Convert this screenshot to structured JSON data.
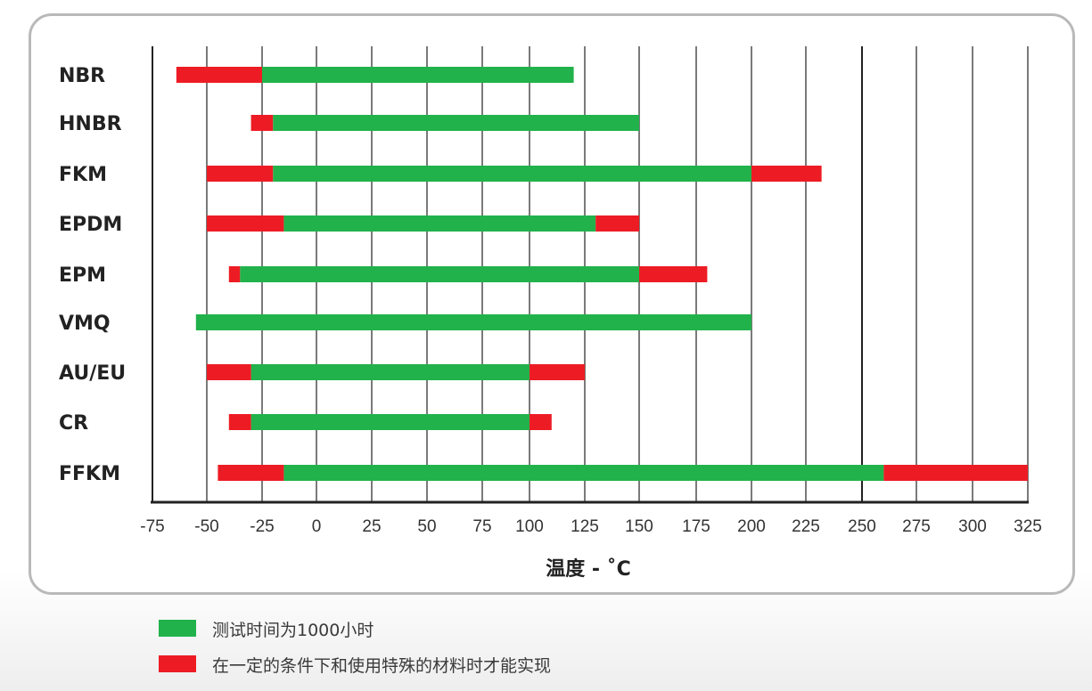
{
  "chart_data": {
    "type": "bar",
    "orientation": "horizontal-range",
    "xlabel": "温度 - ˚C",
    "xlim": [
      -75,
      325
    ],
    "xticks": [
      "-75",
      "-50",
      "-25",
      "0",
      "25",
      "50",
      "75",
      "100",
      "125",
      "150",
      "175",
      "200",
      "225",
      "250",
      "275",
      "300",
      "325"
    ],
    "grid": "vertical",
    "legend_position": "bottom-left",
    "colors": {
      "standard": "#21b24b",
      "special": "#ed1c24"
    },
    "legend": [
      {
        "key": "standard",
        "label": "测试时间为1000小时"
      },
      {
        "key": "special",
        "label": "在一定的条件下和使用特殊的材料时才能实现"
      }
    ],
    "categories": [
      "NBR",
      "HNBR",
      "FKM",
      "EPDM",
      "EPM",
      "VMQ",
      "AU/EU",
      "CR",
      "FFKM"
    ],
    "series": [
      {
        "name": "测试时间为1000小时",
        "key": "standard",
        "ranges": [
          [
            -25,
            120
          ],
          [
            -20,
            150
          ],
          [
            -20,
            200
          ],
          [
            -15,
            130
          ],
          [
            -35,
            150
          ],
          [
            -55,
            200
          ],
          [
            -30,
            100
          ],
          [
            -30,
            100
          ],
          [
            -15,
            260
          ]
        ]
      },
      {
        "name": "在一定的条件下和使用特殊的材料时才能实现 (low)",
        "key": "special",
        "ranges": [
          [
            -64,
            -25
          ],
          [
            -30,
            -20
          ],
          [
            -50,
            -20
          ],
          [
            -50,
            -15
          ],
          [
            -40,
            -35
          ],
          null,
          [
            -50,
            -30
          ],
          [
            -40,
            -30
          ],
          [
            -45,
            -15
          ]
        ]
      },
      {
        "name": "在一定的条件下和使用特殊的材料时才能实现 (high)",
        "key": "special",
        "ranges": [
          null,
          null,
          [
            200,
            232
          ],
          [
            130,
            150
          ],
          [
            150,
            180
          ],
          null,
          [
            100,
            125
          ],
          [
            100,
            110
          ],
          [
            260,
            325
          ]
        ]
      }
    ]
  }
}
